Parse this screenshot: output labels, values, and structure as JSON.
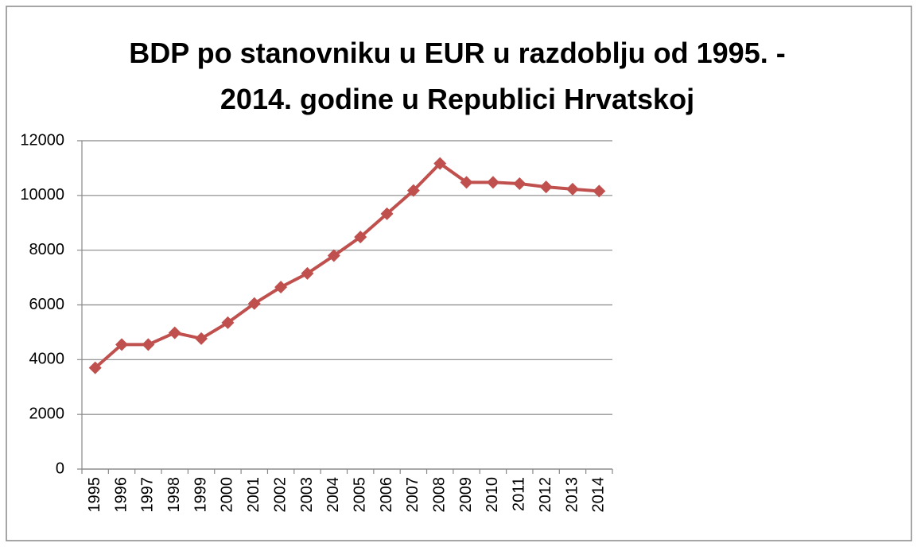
{
  "chart_data": {
    "type": "line",
    "title": "BDP po stanovniku u EUR u razdoblju od 1995. - 2014. godine u Republici Hrvatskoj",
    "categories": [
      "1995",
      "1996",
      "1997",
      "1998",
      "1999",
      "2000",
      "2001",
      "2002",
      "2003",
      "2004",
      "2005",
      "2006",
      "2007",
      "2008",
      "2009",
      "2010",
      "2011",
      "2012",
      "2013",
      "2014"
    ],
    "series": [
      {
        "color": "#c0504d",
        "values": [
          3700,
          4550,
          4550,
          4980,
          4770,
          5350,
          6050,
          6650,
          7150,
          7800,
          8480,
          9330,
          10180,
          11170,
          10480,
          10480,
          10430,
          10310,
          10230,
          10160
        ]
      }
    ],
    "ylim": [
      0,
      12000
    ],
    "yticks": [
      0,
      2000,
      4000,
      6000,
      8000,
      10000,
      12000
    ],
    "grid": true
  }
}
